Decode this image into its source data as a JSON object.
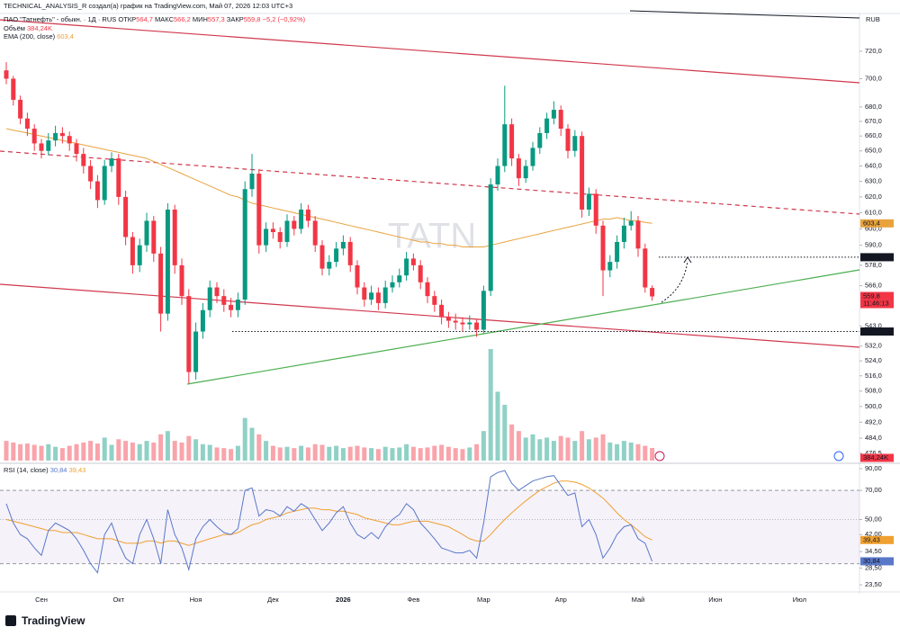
{
  "header": "TECHNICAL_ANALYSIS_R создал(а) график на TradingView.com, Май 07, 2026 12:03 UTC+3",
  "footer": "TradingView",
  "chart_data": {
    "type": "candlestick",
    "currency": "RUB",
    "watermark": "TATN",
    "log": true,
    "up_color": "#089981",
    "down_color": "#f23645",
    "legend": {
      "symbol": "ПАО \"Татнефть\" - обыкн. · 1Д · RUS",
      "open_name": "ОТКР",
      "open": "564,7",
      "high_name": "МАКС",
      "high": "566,2",
      "low_name": "МИН",
      "low": "557,3",
      "close_name": "ЗАКР",
      "close": "559,8",
      "change": "−5,2 (−0,92%)"
    },
    "categories": [
      null,
      null,
      null,
      null,
      null,
      "Сен",
      null,
      null,
      null,
      null,
      null,
      null,
      null,
      null,
      null,
      null,
      "Окт",
      null,
      null,
      null,
      null,
      null,
      null,
      null,
      null,
      null,
      null,
      "Ноя",
      null,
      null,
      null,
      null,
      null,
      null,
      null,
      null,
      null,
      null,
      "Дек",
      null,
      null,
      null,
      null,
      null,
      null,
      null,
      null,
      null,
      "2026",
      null,
      null,
      null,
      null,
      null,
      null,
      null,
      null,
      null,
      "Фев",
      null,
      null,
      null,
      null,
      null,
      null,
      null,
      null,
      null,
      "Мар",
      null,
      null,
      null,
      null,
      null,
      null,
      null,
      null,
      null,
      null,
      "Апр",
      null,
      null,
      null,
      null,
      null,
      null,
      null,
      null,
      null,
      null,
      "Май",
      null,
      null,
      null,
      null,
      null,
      null,
      null,
      null,
      null,
      null,
      "Июн",
      null,
      null,
      null,
      null,
      null,
      null,
      null,
      null,
      null,
      null,
      null,
      "Июл",
      null,
      null,
      null,
      null
    ],
    "ohlc": [
      [
        706,
        712,
        696,
        700
      ],
      [
        700,
        702,
        681,
        685
      ],
      [
        685,
        688,
        668,
        672
      ],
      [
        672,
        676,
        660,
        665
      ],
      [
        665,
        668,
        650,
        655
      ],
      [
        655,
        658,
        645,
        650
      ],
      [
        650,
        662,
        647,
        657
      ],
      [
        657,
        667,
        653,
        662
      ],
      [
        662,
        666,
        655,
        660
      ],
      [
        660,
        663,
        650,
        655
      ],
      [
        655,
        658,
        643,
        648
      ],
      [
        648,
        652,
        635,
        640
      ],
      [
        640,
        644,
        625,
        630
      ],
      [
        630,
        634,
        613,
        618
      ],
      [
        618,
        644,
        615,
        640
      ],
      [
        640,
        649,
        636,
        645
      ],
      [
        645,
        648,
        615,
        620
      ],
      [
        620,
        624,
        590,
        595
      ],
      [
        595,
        598,
        573,
        578
      ],
      [
        578,
        594,
        574,
        590
      ],
      [
        590,
        610,
        586,
        605
      ],
      [
        605,
        608,
        580,
        585
      ],
      [
        585,
        589,
        540,
        550
      ],
      [
        550,
        616,
        546,
        612
      ],
      [
        612,
        615,
        573,
        578
      ],
      [
        578,
        582,
        555,
        560
      ],
      [
        560,
        564,
        512,
        518
      ],
      [
        518,
        545,
        514,
        540
      ],
      [
        540,
        556,
        536,
        552
      ],
      [
        552,
        569,
        548,
        565
      ],
      [
        565,
        568,
        556,
        560
      ],
      [
        560,
        564,
        551,
        555
      ],
      [
        555,
        559,
        548,
        552
      ],
      [
        552,
        562,
        548,
        558
      ],
      [
        558,
        630,
        555,
        625
      ],
      [
        625,
        648,
        620,
        635
      ],
      [
        635,
        638,
        585,
        590
      ],
      [
        590,
        604,
        586,
        600
      ],
      [
        600,
        604,
        594,
        598
      ],
      [
        598,
        601,
        588,
        592
      ],
      [
        592,
        609,
        589,
        605
      ],
      [
        605,
        608,
        596,
        600
      ],
      [
        600,
        616,
        597,
        612
      ],
      [
        612,
        615,
        601,
        605
      ],
      [
        605,
        608,
        586,
        590
      ],
      [
        590,
        593,
        572,
        576
      ],
      [
        576,
        584,
        572,
        580
      ],
      [
        580,
        592,
        577,
        588
      ],
      [
        588,
        596,
        584,
        592
      ],
      [
        592,
        595,
        574,
        578
      ],
      [
        578,
        581,
        561,
        565
      ],
      [
        565,
        568,
        554,
        558
      ],
      [
        558,
        566,
        555,
        562
      ],
      [
        562,
        565,
        552,
        556
      ],
      [
        556,
        569,
        553,
        565
      ],
      [
        565,
        572,
        562,
        568
      ],
      [
        568,
        576,
        565,
        572
      ],
      [
        572,
        586,
        569,
        582
      ],
      [
        582,
        585,
        575,
        578
      ],
      [
        578,
        581,
        564,
        568
      ],
      [
        568,
        571,
        556,
        560
      ],
      [
        560,
        563,
        551,
        555
      ],
      [
        555,
        558,
        544,
        548
      ],
      [
        548,
        551,
        542,
        546
      ],
      [
        546,
        550,
        541,
        545
      ],
      [
        545,
        548,
        540,
        544
      ],
      [
        544,
        549,
        541,
        545
      ],
      [
        545,
        547,
        537,
        541
      ],
      [
        541,
        566,
        539,
        563
      ],
      [
        563,
        632,
        560,
        628
      ],
      [
        628,
        645,
        624,
        640
      ],
      [
        640,
        695,
        636,
        668
      ],
      [
        668,
        672,
        640,
        645
      ],
      [
        645,
        648,
        627,
        632
      ],
      [
        632,
        644,
        629,
        640
      ],
      [
        640,
        656,
        637,
        652
      ],
      [
        652,
        666,
        648,
        662
      ],
      [
        662,
        676,
        658,
        672
      ],
      [
        672,
        684,
        668,
        678
      ],
      [
        678,
        681,
        660,
        665
      ],
      [
        665,
        668,
        645,
        650
      ],
      [
        650,
        664,
        646,
        660
      ],
      [
        660,
        663,
        607,
        612
      ],
      [
        612,
        626,
        608,
        622
      ],
      [
        622,
        625,
        597,
        602
      ],
      [
        602,
        605,
        560,
        575
      ],
      [
        575,
        584,
        571,
        580
      ],
      [
        580,
        596,
        576,
        592
      ],
      [
        592,
        607,
        588,
        602
      ],
      [
        602,
        611,
        599,
        605
      ],
      [
        605,
        608,
        583,
        588
      ],
      [
        588,
        591,
        562,
        565
      ],
      [
        564.7,
        566.2,
        557.3,
        559.8
      ],
      null,
      null,
      null,
      null,
      null,
      null,
      null,
      null,
      null,
      null,
      null,
      null,
      null,
      null,
      null,
      null,
      null,
      null,
      null,
      null,
      null,
      null,
      null,
      null,
      null
    ],
    "ema": {
      "name": "EMA (200, close)",
      "color": "#e8a33d",
      "last_label": "603,4",
      "values": [
        665,
        664,
        663,
        662,
        661,
        660,
        659,
        658,
        657,
        656,
        655,
        654,
        653,
        652,
        651,
        650,
        649,
        648,
        647,
        646,
        645,
        643,
        641,
        639,
        637,
        635,
        633,
        631,
        629,
        627,
        625,
        623,
        621,
        620,
        618,
        616,
        615,
        614,
        613,
        612,
        611,
        610,
        609,
        608,
        607,
        606,
        605,
        604,
        603,
        602,
        601,
        600,
        599,
        598,
        597,
        596,
        595,
        594,
        593,
        592,
        592,
        591,
        591,
        590,
        590,
        589,
        589,
        589,
        589,
        590,
        591,
        592,
        593,
        594,
        595,
        596,
        597,
        598,
        599,
        600,
        601,
        602,
        603,
        604,
        605,
        606,
        606,
        607,
        606,
        605,
        605,
        604,
        603.4,
        null,
        null,
        null,
        null,
        null,
        null,
        null,
        null,
        null,
        null,
        null,
        null,
        null,
        null,
        null,
        null,
        null,
        null,
        null,
        null,
        null,
        null,
        null,
        null,
        null
      ]
    },
    "volume": {
      "name": "Объём",
      "last_label": "384,24K",
      "values": [
        600,
        550,
        500,
        520,
        480,
        450,
        500,
        420,
        380,
        450,
        500,
        550,
        600,
        520,
        700,
        480,
        650,
        600,
        550,
        500,
        600,
        550,
        800,
        900,
        600,
        550,
        750,
        650,
        500,
        480,
        400,
        380,
        350,
        450,
        1300,
        1000,
        800,
        600,
        450,
        400,
        420,
        380,
        450,
        400,
        500,
        480,
        420,
        450,
        380,
        420,
        450,
        400,
        380,
        350,
        420,
        380,
        400,
        500,
        420,
        380,
        400,
        450,
        480,
        420,
        380,
        350,
        400,
        500,
        900,
        3400,
        2100,
        1700,
        1100,
        900,
        700,
        800,
        650,
        700,
        600,
        750,
        700,
        600,
        900,
        650,
        700,
        800,
        550,
        500,
        600,
        550,
        500,
        450,
        384.24,
        null,
        null,
        null,
        null,
        null,
        null,
        null,
        null,
        null,
        null,
        null,
        null,
        null,
        null,
        null,
        null,
        null,
        null,
        null,
        null,
        null,
        null,
        null,
        null,
        null
      ]
    },
    "ylim": [
      473,
      745
    ],
    "yticks": [
      {
        "value": 720,
        "label": "720,0"
      },
      {
        "value": 700,
        "label": "700,0"
      },
      {
        "value": 680,
        "label": "680,0"
      },
      {
        "value": 670,
        "label": "670,0"
      },
      {
        "value": 660,
        "label": "660,0"
      },
      {
        "value": 650,
        "label": "650,0"
      },
      {
        "value": 640,
        "label": "640,0"
      },
      {
        "value": 630,
        "label": "630,0"
      },
      {
        "value": 620,
        "label": "620,0"
      },
      {
        "value": 610,
        "label": "610,0"
      },
      {
        "value": 600,
        "label": "600,0"
      },
      {
        "value": 590,
        "label": "590,0"
      },
      {
        "value": 578,
        "label": "578,0"
      },
      {
        "value": 566,
        "label": "566,0"
      },
      {
        "value": 543,
        "label": "543,0"
      },
      {
        "value": 532,
        "label": "532,0"
      },
      {
        "value": 524,
        "label": "524,0"
      },
      {
        "value": 516,
        "label": "516,0"
      },
      {
        "value": 508,
        "label": "508,0"
      },
      {
        "value": 500,
        "label": "500,0"
      },
      {
        "value": 492,
        "label": "492,0"
      },
      {
        "value": 484,
        "label": "484,0"
      },
      {
        "value": 476.5,
        "label": "476,5"
      }
    ],
    "levels": [
      {
        "value": 582.8,
        "label": "582,8"
      },
      {
        "value": 540,
        "label": "540,0"
      }
    ],
    "last_price": {
      "value": 559.8,
      "label": "559,8",
      "countdown": "11:46:13"
    },
    "rsi": {
      "name": "RSI (14, close)",
      "color": "#5a78c8",
      "last_label": "30,84",
      "log": true,
      "values": [
        60,
        48,
        42,
        40,
        36,
        33,
        44,
        48,
        46,
        44,
        40,
        35,
        30,
        27,
        42,
        48,
        38,
        32,
        30,
        42,
        50,
        40,
        30,
        56,
        42,
        36,
        28,
        40,
        46,
        50,
        46,
        43,
        42,
        45,
        70,
        72,
        52,
        56,
        55,
        52,
        58,
        55,
        60,
        57,
        50,
        44,
        48,
        54,
        58,
        48,
        42,
        40,
        43,
        40,
        46,
        50,
        53,
        60,
        56,
        48,
        44,
        40,
        36,
        35,
        34,
        34,
        35,
        32,
        48,
        82,
        86,
        88,
        76,
        70,
        74,
        78,
        80,
        82,
        83,
        74,
        66,
        68,
        46,
        50,
        42,
        32,
        36,
        42,
        46,
        47,
        40,
        38,
        30.84,
        null,
        null,
        null,
        null,
        null,
        null,
        null,
        null,
        null,
        null,
        null,
        null,
        null,
        null,
        null,
        null,
        null,
        null,
        null,
        null,
        null,
        null,
        null,
        null,
        null
      ],
      "ma": {
        "color": "#f0a030",
        "last_label": "39,43",
        "values": [
          50,
          49,
          48,
          47,
          46,
          45,
          44,
          44,
          43,
          43,
          43,
          42,
          41,
          40,
          40,
          40,
          39,
          38,
          38,
          38,
          39,
          39,
          38,
          39,
          39,
          38,
          37,
          38,
          39,
          40,
          41,
          42,
          42,
          43,
          45,
          47,
          48,
          50,
          51,
          52,
          54,
          55,
          56,
          57,
          57,
          56,
          56,
          55,
          55,
          54,
          53,
          51,
          50,
          49,
          48,
          47,
          47,
          48,
          49,
          49,
          49,
          48,
          47,
          46,
          44,
          42,
          40,
          39,
          39,
          42,
          46,
          50,
          54,
          58,
          62,
          66,
          70,
          73,
          76,
          78,
          78,
          77,
          75,
          72,
          68,
          64,
          59,
          54,
          50,
          47,
          44,
          41,
          39.43,
          null,
          null,
          null,
          null,
          null,
          null,
          null,
          null,
          null,
          null,
          null,
          null,
          null,
          null,
          null,
          null,
          null,
          null,
          null,
          null,
          null,
          null,
          null,
          null,
          null
        ]
      },
      "ylim": [
        22.1,
        92.8
      ],
      "yticks": [
        {
          "value": 90,
          "label": "90,00"
        },
        {
          "value": 70,
          "label": "70,00"
        },
        {
          "value": 50,
          "label": "50,00"
        },
        {
          "value": 42,
          "label": "42,00"
        },
        {
          "value": 34.5,
          "label": "34,50"
        },
        {
          "value": 28.5,
          "label": "28,50"
        },
        {
          "value": 23.5,
          "label": "23,50"
        }
      ],
      "bands": [
        70,
        30
      ],
      "midline": 50
    }
  }
}
